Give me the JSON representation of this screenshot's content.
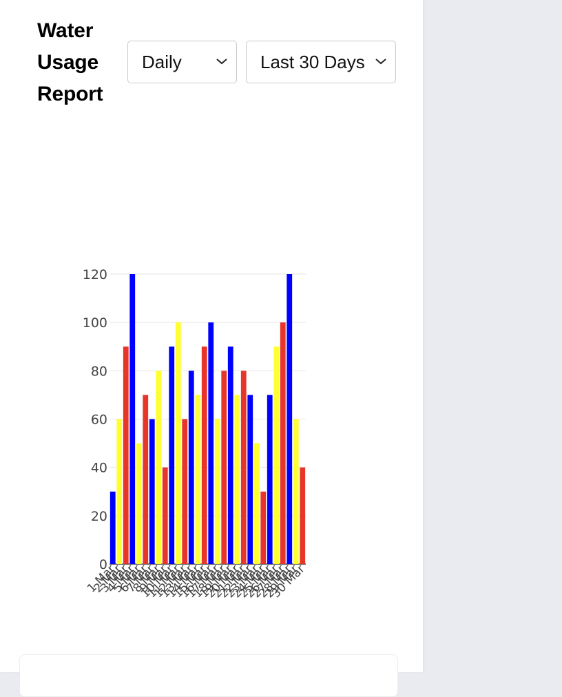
{
  "header": {
    "title": "Water Usage Report",
    "frequency_select": {
      "selected": "Daily"
    },
    "range_select": {
      "selected": "Last 30 Days"
    }
  },
  "colors": {
    "blue": "#0000ff",
    "yellow": "#ffff33",
    "red": "#e8352a"
  },
  "chart_data": {
    "type": "bar",
    "categories": [
      "1 Mar",
      "2 Mar",
      "3 Mar",
      "4 Mar",
      "5 Mar",
      "6 Mar",
      "7 Mar",
      "8 Mar",
      "9 Mar",
      "10 Mar",
      "11 Mar",
      "12 Mar",
      "13 Mar",
      "14 Mar",
      "15 Mar",
      "16 Mar",
      "17 Mar",
      "18 Mar",
      "19 Mar",
      "20 Mar",
      "21 Mar",
      "22 Mar",
      "23 Mar",
      "24 Mar",
      "25 Mar",
      "26 Mar",
      "27 Mar",
      "28 Mar",
      "29 Mar",
      "30 Mar"
    ],
    "values": [
      30,
      60,
      90,
      120,
      50,
      70,
      60,
      80,
      40,
      90,
      100,
      60,
      80,
      70,
      90,
      100,
      60,
      80,
      90,
      70,
      80,
      70,
      50,
      30,
      70,
      90,
      100,
      120,
      60,
      40
    ],
    "bar_colors": [
      "blue",
      "yellow",
      "red",
      "blue",
      "yellow",
      "red",
      "blue",
      "yellow",
      "red",
      "blue",
      "yellow",
      "red",
      "blue",
      "yellow",
      "red",
      "blue",
      "yellow",
      "red",
      "blue",
      "yellow",
      "red",
      "blue",
      "yellow",
      "red",
      "blue",
      "yellow",
      "red",
      "blue",
      "yellow",
      "red"
    ],
    "ylim": [
      0,
      120
    ],
    "yticks": [
      0,
      20,
      40,
      60,
      80,
      100,
      120
    ],
    "grid": true
  }
}
